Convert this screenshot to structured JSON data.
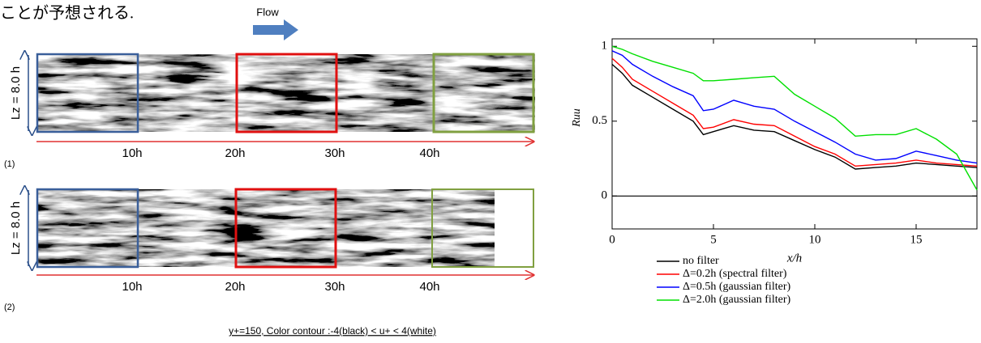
{
  "header_text": "ことが予想される.",
  "flow_figure": {
    "flow_label": "Flow",
    "panels": [
      {
        "label": "(1)",
        "lz_label": "Lz = 8.0 h",
        "positions": [
          "10h",
          "20h",
          "30h",
          "40h"
        ]
      },
      {
        "label": "(2)",
        "lz_label": "Lz = 8.0 h",
        "positions": [
          "10h",
          "20h",
          "30h",
          "40h"
        ]
      }
    ],
    "caption": "y+=150, Color contour :-4(black) < u+ < 4(white)"
  },
  "chart_data": {
    "type": "line",
    "xlabel": "x/h",
    "ylabel": "Ruu",
    "xlim": [
      0,
      18
    ],
    "ylim": [
      -0.22,
      1.05
    ],
    "xticks": [
      0,
      5,
      10,
      15
    ],
    "yticks": [
      0,
      0.5,
      1
    ],
    "zero_line": true,
    "legend": "below",
    "x": [
      0,
      0.5,
      1,
      2,
      3,
      4,
      4.5,
      5,
      6,
      7,
      8,
      9,
      10,
      11,
      12,
      13,
      14,
      15,
      16,
      17,
      18
    ],
    "series": [
      {
        "name": "no filter",
        "color": "#000000",
        "values": [
          0.88,
          0.82,
          0.74,
          0.66,
          0.58,
          0.5,
          0.41,
          0.43,
          0.47,
          0.44,
          0.43,
          0.37,
          0.31,
          0.26,
          0.18,
          0.19,
          0.2,
          0.22,
          0.21,
          0.2,
          0.19
        ]
      },
      {
        "name": "Δ=0.2h (spectral filter)",
        "color": "#ff0000",
        "values": [
          0.92,
          0.86,
          0.78,
          0.7,
          0.62,
          0.54,
          0.45,
          0.46,
          0.51,
          0.48,
          0.47,
          0.4,
          0.33,
          0.28,
          0.2,
          0.21,
          0.22,
          0.24,
          0.22,
          0.21,
          0.2
        ]
      },
      {
        "name": "Δ=0.5h (gaussian filter)",
        "color": "#0000ff",
        "values": [
          0.97,
          0.94,
          0.88,
          0.8,
          0.73,
          0.67,
          0.57,
          0.58,
          0.64,
          0.6,
          0.58,
          0.5,
          0.43,
          0.36,
          0.28,
          0.24,
          0.25,
          0.3,
          0.27,
          0.24,
          0.22
        ]
      },
      {
        "name": "Δ=2.0h (gaussian filter)",
        "color": "#00e000",
        "values": [
          1.0,
          0.98,
          0.95,
          0.9,
          0.86,
          0.82,
          0.77,
          0.77,
          0.78,
          0.79,
          0.8,
          0.68,
          0.6,
          0.52,
          0.4,
          0.41,
          0.41,
          0.45,
          0.38,
          0.28,
          0.04
        ]
      }
    ]
  }
}
